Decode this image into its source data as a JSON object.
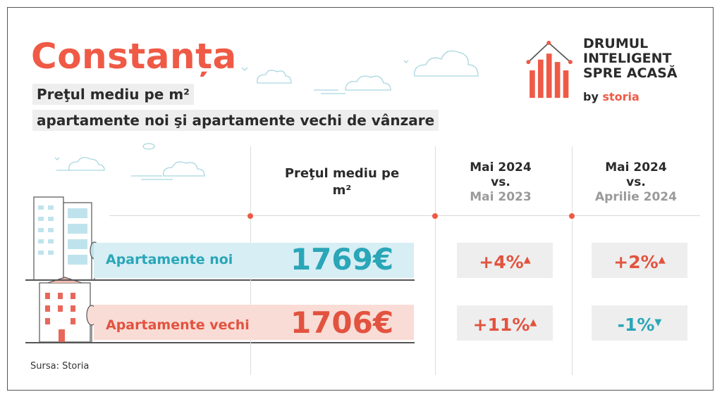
{
  "header": {
    "city": "Constanța",
    "subtitle_line1": "Preţul mediu pe m²",
    "subtitle_line2": "apartamente noi şi apartamente vechi de vânzare"
  },
  "logo": {
    "line1": "DRUMUL",
    "line2": "INTELIGENT",
    "line3": "SPRE ACASĂ",
    "by": "by",
    "brand": "storia"
  },
  "columns": {
    "price_header": "Preţul mediu pe m²",
    "yoy_line1": "Mai 2024",
    "yoy_line2": "vs.",
    "yoy_line3": "Mai 2023",
    "mom_line1": "Mai 2024",
    "mom_line2": "vs.",
    "mom_line3": "Aprilie 2024"
  },
  "rows": [
    {
      "label": "Apartamente noi",
      "price": "1769€",
      "yoy": "+4%",
      "yoy_dir": "up",
      "mom": "+2%",
      "mom_dir": "up"
    },
    {
      "label": "Apartamente vechi",
      "price": "1706€",
      "yoy": "+11%",
      "yoy_dir": "up",
      "mom": "-1%",
      "mom_dir": "down"
    }
  ],
  "footer": {
    "source": "Sursa: Storia"
  },
  "colors": {
    "accent_red": "#ef5a46",
    "accent_teal": "#2aa6b8",
    "band_blue": "#d6eef4",
    "band_pink": "#f9dcd6"
  },
  "icons": {
    "logo": "house-bar-chart-icon",
    "arrow_up": "arrow-up-icon",
    "arrow_down": "arrow-down-icon"
  }
}
